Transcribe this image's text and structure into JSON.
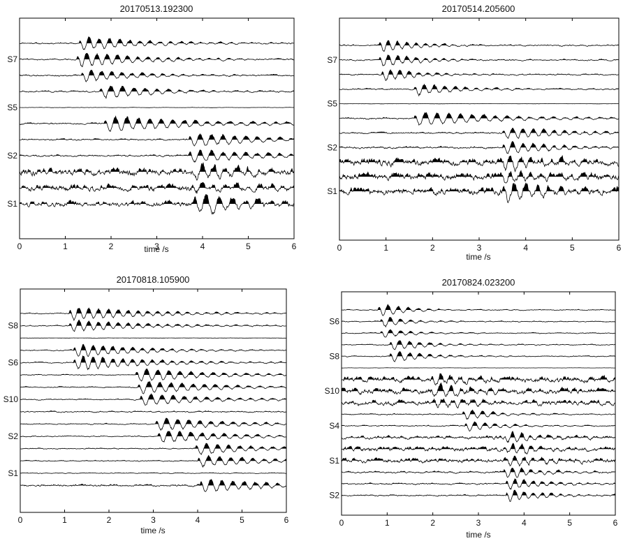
{
  "figure": {
    "panels": [
      {
        "title": "20170513.192300",
        "xlabel": "time /s",
        "xlim": [
          0,
          6
        ],
        "xticks": [
          "0",
          "1",
          "2",
          "3",
          "4",
          "5",
          "6"
        ],
        "station_labels": [
          {
            "text": "S7",
            "trace": 1
          },
          {
            "text": "S5",
            "trace": 4
          },
          {
            "text": "S2",
            "trace": 7
          },
          {
            "text": "S1",
            "trace": 10
          }
        ],
        "traces": [
          {
            "onset": 1.3,
            "amp": 1.0,
            "noise": 0.1,
            "decay": 1.3,
            "freq": 4.5
          },
          {
            "onset": 1.25,
            "amp": 1.1,
            "noise": 0.1,
            "decay": 1.3,
            "freq": 4.5
          },
          {
            "onset": 1.35,
            "amp": 0.9,
            "noise": 0.1,
            "decay": 1.2,
            "freq": 4.5
          },
          {
            "onset": 1.75,
            "amp": 1.0,
            "noise": 0.1,
            "decay": 1.2,
            "freq": 4.0
          },
          {
            "onset": null,
            "amp": 0,
            "noise": 0.02,
            "decay": 1.0,
            "freq": 4.0
          },
          {
            "onset": 1.85,
            "amp": 1.1,
            "noise": 0.1,
            "decay": 2.0,
            "freq": 4.0
          },
          {
            "onset": 3.7,
            "amp": 1.0,
            "noise": 0.1,
            "decay": 1.5,
            "freq": 4.0
          },
          {
            "onset": 3.7,
            "amp": 1.0,
            "noise": 0.12,
            "decay": 1.4,
            "freq": 4.0
          },
          {
            "onset": 3.75,
            "amp": 1.0,
            "noise": 0.45,
            "decay": 1.3,
            "freq": 4.0
          },
          {
            "onset": 3.75,
            "amp": 0.8,
            "noise": 0.4,
            "decay": 1.3,
            "freq": 4.0
          },
          {
            "onset": 3.8,
            "amp": 1.4,
            "noise": 0.35,
            "decay": 1.4,
            "freq": 3.5
          }
        ]
      },
      {
        "title": "20170514.205600",
        "xlabel": "time /s",
        "xlim": [
          0,
          6
        ],
        "xticks": [
          "0",
          "1",
          "2",
          "3",
          "4",
          "5",
          "6"
        ],
        "station_labels": [
          {
            "text": "S7",
            "trace": 1
          },
          {
            "text": "S5",
            "trace": 4
          },
          {
            "text": "S2",
            "trace": 7
          },
          {
            "text": "S1",
            "trace": 10
          }
        ],
        "traces": [
          {
            "onset": 0.85,
            "amp": 1.0,
            "noise": 0.1,
            "decay": 0.8,
            "freq": 5.0
          },
          {
            "onset": 0.85,
            "amp": 1.1,
            "noise": 0.1,
            "decay": 0.8,
            "freq": 5.0
          },
          {
            "onset": 0.9,
            "amp": 1.0,
            "noise": 0.1,
            "decay": 0.8,
            "freq": 5.0
          },
          {
            "onset": 1.6,
            "amp": 1.0,
            "noise": 0.1,
            "decay": 0.9,
            "freq": 4.5
          },
          {
            "onset": null,
            "amp": 0,
            "noise": 0.02,
            "decay": 1.0,
            "freq": 4.0
          },
          {
            "onset": 1.6,
            "amp": 1.1,
            "noise": 0.12,
            "decay": 1.8,
            "freq": 4.0
          },
          {
            "onset": 3.5,
            "amp": 1.0,
            "noise": 0.12,
            "decay": 1.2,
            "freq": 4.5
          },
          {
            "onset": 3.5,
            "amp": 1.0,
            "noise": 0.15,
            "decay": 1.1,
            "freq": 4.5
          },
          {
            "onset": 3.45,
            "amp": 1.1,
            "noise": 0.5,
            "decay": 1.1,
            "freq": 4.5
          },
          {
            "onset": 3.45,
            "amp": 0.9,
            "noise": 0.5,
            "decay": 1.1,
            "freq": 4.5
          },
          {
            "onset": 3.5,
            "amp": 1.5,
            "noise": 0.5,
            "decay": 1.3,
            "freq": 4.0
          }
        ]
      },
      {
        "title": "20170818.105900",
        "xlabel": "time /s",
        "xlim": [
          0,
          6
        ],
        "xticks": [
          "0",
          "1",
          "2",
          "3",
          "4",
          "5",
          "6"
        ],
        "station_labels": [
          {
            "text": "S8",
            "trace": 1
          },
          {
            "text": "S6",
            "trace": 4
          },
          {
            "text": "S10",
            "trace": 7
          },
          {
            "text": "S2",
            "trace": 10
          },
          {
            "text": "S1",
            "trace": 13
          }
        ],
        "traces": [
          {
            "onset": 1.1,
            "amp": 1.1,
            "noise": 0.08,
            "decay": 1.8,
            "freq": 4.5
          },
          {
            "onset": 1.1,
            "amp": 1.0,
            "noise": 0.08,
            "decay": 1.6,
            "freq": 4.5
          },
          {
            "onset": null,
            "amp": 0,
            "noise": 0.02,
            "decay": 1.0,
            "freq": 4.0
          },
          {
            "onset": 1.2,
            "amp": 1.1,
            "noise": 0.08,
            "decay": 1.5,
            "freq": 4.5
          },
          {
            "onset": 1.2,
            "amp": 1.2,
            "noise": 0.08,
            "decay": 1.7,
            "freq": 4.5
          },
          {
            "onset": 2.6,
            "amp": 1.1,
            "noise": 0.08,
            "decay": 1.6,
            "freq": 4.0
          },
          {
            "onset": 2.65,
            "amp": 1.1,
            "noise": 0.08,
            "decay": 1.6,
            "freq": 4.0
          },
          {
            "onset": 2.7,
            "amp": 1.0,
            "noise": 0.08,
            "decay": 1.6,
            "freq": 4.0
          },
          {
            "onset": null,
            "amp": 0,
            "noise": 0.1,
            "decay": 1.0,
            "freq": 4.0
          },
          {
            "onset": 3.05,
            "amp": 1.1,
            "noise": 0.08,
            "decay": 1.5,
            "freq": 4.0
          },
          {
            "onset": 3.1,
            "amp": 1.1,
            "noise": 0.08,
            "decay": 1.5,
            "freq": 4.0
          },
          {
            "onset": 3.95,
            "amp": 1.0,
            "noise": 0.08,
            "decay": 1.4,
            "freq": 4.0
          },
          {
            "onset": 4.0,
            "amp": 1.0,
            "noise": 0.08,
            "decay": 1.4,
            "freq": 4.0
          },
          {
            "onset": null,
            "amp": 0,
            "noise": 0.06,
            "decay": 1.0,
            "freq": 4.0
          },
          {
            "onset": 4.05,
            "amp": 1.2,
            "noise": 0.15,
            "decay": 1.4,
            "freq": 4.0
          }
        ]
      },
      {
        "title": "20170824.023200",
        "xlabel": "time /s",
        "xlim": [
          0,
          6
        ],
        "xticks": [
          "0",
          "1",
          "2",
          "3",
          "4",
          "5",
          "6"
        ],
        "station_labels": [
          {
            "text": "S6",
            "trace": 1
          },
          {
            "text": "S8",
            "trace": 4
          },
          {
            "text": "S10",
            "trace": 7
          },
          {
            "text": "S4",
            "trace": 10
          },
          {
            "text": "S1",
            "trace": 13
          },
          {
            "text": "S2",
            "trace": 16
          }
        ],
        "traces": [
          {
            "onset": 0.8,
            "amp": 1.2,
            "noise": 0.08,
            "decay": 0.6,
            "freq": 4.5
          },
          {
            "onset": 0.85,
            "amp": 1.0,
            "noise": 0.08,
            "decay": 0.6,
            "freq": 4.5
          },
          {
            "onset": 0.85,
            "amp": 0.9,
            "noise": 0.08,
            "decay": 0.6,
            "freq": 4.5
          },
          {
            "onset": 1.05,
            "amp": 1.0,
            "noise": 0.08,
            "decay": 0.8,
            "freq": 4.5
          },
          {
            "onset": 1.05,
            "amp": 1.1,
            "noise": 0.08,
            "decay": 0.8,
            "freq": 4.5
          },
          {
            "onset": null,
            "amp": 0,
            "noise": 0.02,
            "decay": 1.0,
            "freq": 4.0
          },
          {
            "onset": 1.95,
            "amp": 1.0,
            "noise": 0.45,
            "decay": 0.9,
            "freq": 4.5
          },
          {
            "onset": 1.95,
            "amp": 1.1,
            "noise": 0.45,
            "decay": 0.9,
            "freq": 4.5
          },
          {
            "onset": 2.0,
            "amp": 1.0,
            "noise": 0.4,
            "decay": 0.9,
            "freq": 4.5
          },
          {
            "onset": 2.65,
            "amp": 1.0,
            "noise": 0.1,
            "decay": 0.7,
            "freq": 4.5
          },
          {
            "onset": 2.7,
            "amp": 1.0,
            "noise": 0.1,
            "decay": 0.7,
            "freq": 4.5
          },
          {
            "onset": 3.55,
            "amp": 1.0,
            "noise": 0.25,
            "decay": 0.8,
            "freq": 5.0
          },
          {
            "onset": 3.55,
            "amp": 1.0,
            "noise": 0.35,
            "decay": 0.8,
            "freq": 5.0
          },
          {
            "onset": 3.6,
            "amp": 1.0,
            "noise": 0.35,
            "decay": 0.8,
            "freq": 5.0
          },
          {
            "onset": 3.55,
            "amp": 1.0,
            "noise": 0.15,
            "decay": 0.8,
            "freq": 5.0
          },
          {
            "onset": 3.6,
            "amp": 1.0,
            "noise": 0.12,
            "decay": 0.8,
            "freq": 5.0
          },
          {
            "onset": 3.6,
            "amp": 1.1,
            "noise": 0.12,
            "decay": 0.8,
            "freq": 5.0
          }
        ]
      }
    ]
  },
  "chart_data": [
    {
      "type": "line",
      "title": "20170513.192300",
      "xlabel": "time /s",
      "ylabel": "",
      "xlim": [
        0,
        6
      ],
      "x_ticks": [
        0,
        1,
        2,
        3,
        4,
        5,
        6
      ],
      "y_tick_labels": [
        "S7",
        "S5",
        "S2",
        "S1"
      ],
      "series_count": 11,
      "arrival_times_s": [
        1.3,
        1.25,
        1.35,
        1.75,
        null,
        1.85,
        3.7,
        3.7,
        3.75,
        3.75,
        3.8
      ],
      "grid": false
    },
    {
      "type": "line",
      "title": "20170514.205600",
      "xlabel": "time /s",
      "ylabel": "",
      "xlim": [
        0,
        6
      ],
      "x_ticks": [
        0,
        1,
        2,
        3,
        4,
        5,
        6
      ],
      "y_tick_labels": [
        "S7",
        "S5",
        "S2",
        "S1"
      ],
      "series_count": 11,
      "arrival_times_s": [
        0.85,
        0.85,
        0.9,
        1.6,
        null,
        1.6,
        3.5,
        3.5,
        3.45,
        3.45,
        3.5
      ],
      "grid": false
    },
    {
      "type": "line",
      "title": "20170818.105900",
      "xlabel": "time /s",
      "ylabel": "",
      "xlim": [
        0,
        6
      ],
      "x_ticks": [
        0,
        1,
        2,
        3,
        4,
        5,
        6
      ],
      "y_tick_labels": [
        "S8",
        "S6",
        "S10",
        "S2",
        "S1"
      ],
      "series_count": 15,
      "arrival_times_s": [
        1.1,
        1.1,
        null,
        1.2,
        1.2,
        2.6,
        2.65,
        2.7,
        null,
        3.05,
        3.1,
        3.95,
        4.0,
        null,
        4.05
      ],
      "grid": false
    },
    {
      "type": "line",
      "title": "20170824.023200",
      "xlabel": "time /s",
      "ylabel": "",
      "xlim": [
        0,
        6
      ],
      "x_ticks": [
        0,
        1,
        2,
        3,
        4,
        5,
        6
      ],
      "y_tick_labels": [
        "S6",
        "S8",
        "S10",
        "S4",
        "S1",
        "S2"
      ],
      "series_count": 17,
      "arrival_times_s": [
        0.8,
        0.85,
        0.85,
        1.05,
        1.05,
        null,
        1.95,
        1.95,
        2.0,
        2.65,
        2.7,
        3.55,
        3.55,
        3.6,
        3.55,
        3.6,
        3.6
      ],
      "grid": false
    }
  ]
}
